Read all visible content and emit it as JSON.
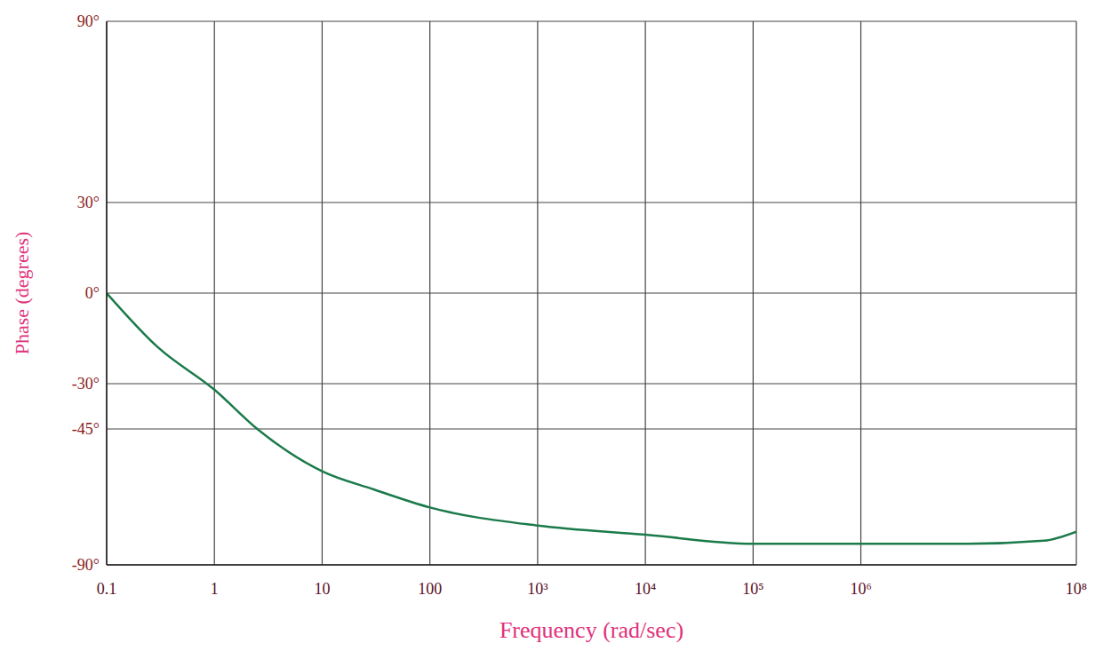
{
  "chart_data": {
    "type": "line",
    "x_label": "Frequency (rad/sec)",
    "y_label": "Phase (degrees)",
    "x": [
      0.1,
      0.3,
      1,
      2.5,
      10,
      30,
      100,
      1000,
      10000,
      100000,
      1000000,
      10000000,
      50000000,
      100000000
    ],
    "values": [
      0,
      -18,
      -32,
      -45,
      -59,
      -65,
      -71,
      -77,
      -80,
      -83,
      -83,
      -83,
      -82,
      -79
    ],
    "color": "#1a7a4a",
    "line_style": "solid",
    "marker": "none",
    "log": "x",
    "grid": true,
    "xlim": [
      0.1,
      100000000
    ],
    "ylim": [
      -90,
      90
    ],
    "xticks": [
      0.1,
      1,
      10,
      100,
      {
        "value": 1000,
        "label": "10³"
      },
      {
        "value": 10000,
        "label": "10⁴"
      },
      {
        "value": 100000,
        "label": "10⁵"
      },
      {
        "value": 1000000,
        "label": "10⁶"
      },
      {
        "value": 100000000,
        "label": "10⁸"
      }
    ],
    "yticks": [
      {
        "value": 90,
        "label": "90°"
      },
      {
        "value": 30,
        "label": "30°"
      },
      {
        "value": 0,
        "label": "0°"
      },
      {
        "value": -30,
        "label": "-30°"
      },
      {
        "value": -45,
        "label": "-45°"
      },
      {
        "value": -90,
        "label": "-90°"
      }
    ]
  }
}
